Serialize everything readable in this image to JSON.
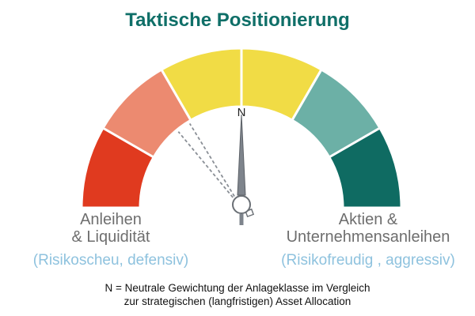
{
  "title": "Taktische Positionierung",
  "chart_data": {
    "type": "gauge",
    "segments": [
      {
        "color": "#e03a1f"
      },
      {
        "color": "#ec8a70"
      },
      {
        "color": "#f1dc45"
      },
      {
        "color": "#f1dc45"
      },
      {
        "color": "#6cb0a6"
      },
      {
        "color": "#0f6b62"
      }
    ],
    "neutral_marker": "N",
    "needle_position": 0.0,
    "previous_positions": [
      -0.35,
      -0.44
    ]
  },
  "left_label": {
    "line1": "Anleihen",
    "line2": "& Liquidität",
    "sub": "(Risikoscheu, defensiv)"
  },
  "right_label": {
    "line1": "Aktien &",
    "line2": "Unternehmensanleihen",
    "sub": "(Risikofreudig , aggressiv)"
  },
  "footnote": {
    "line1": "N = Neutrale Gewichtung der Anlageklasse im Vergleich",
    "line2": "zur strategischen (langfristigen) Asset Allocation"
  }
}
